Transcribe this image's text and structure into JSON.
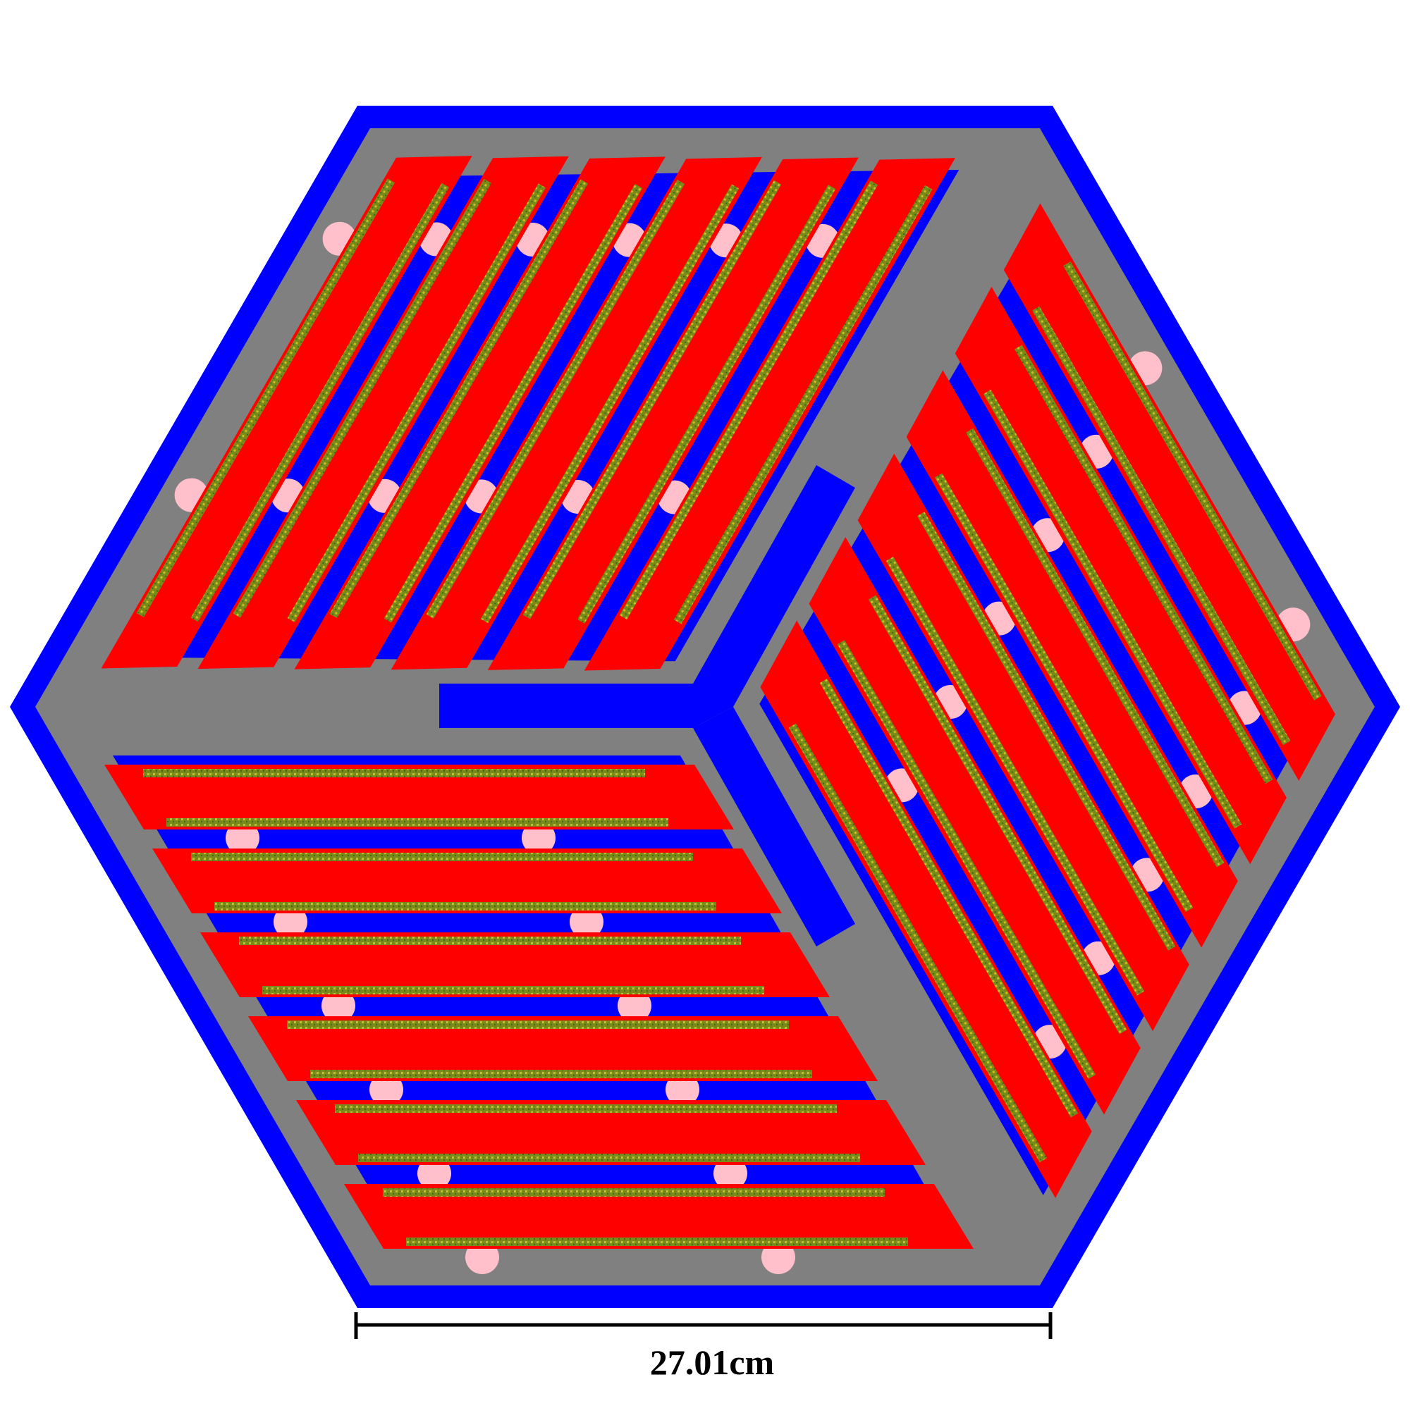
{
  "diagram": {
    "scale_label": "27.01cm",
    "sectors": 3,
    "plates_per_sector": 6,
    "colors": {
      "background": "#ffffff",
      "outer_casing": "#0000ff",
      "inner_fill": "#808080",
      "fuel_plate": "#ff0000",
      "coolant_channel": "#0000ff",
      "fuel_meat": "#8a8a18",
      "support_disk": "#ffc0cb",
      "central_structure": "#0000ff",
      "scale_bar": "#000000"
    }
  }
}
